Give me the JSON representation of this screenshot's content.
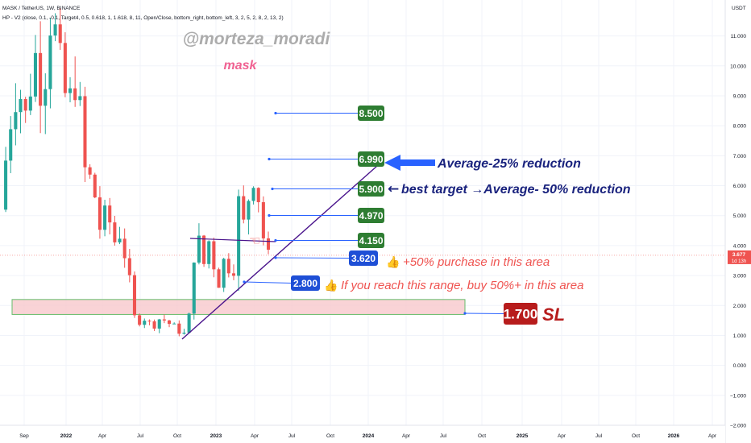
{
  "header": {
    "symbol_line": "MASK / TetherUS, 1W, BINANCE",
    "indicator_line": "HP - V2 (close, 0.1, -0.1, Target4, 0.5, 0.618, 1, 1.618, 8, 11, Open/Close, bottom_right, bottom_left, 3, 2, 5, 2, 8, 2, 13, 2)"
  },
  "watermark": {
    "author": "@morteza_moradi",
    "ticker": "mask"
  },
  "colors": {
    "up": "#26a69a",
    "down": "#ef5350",
    "green_box": "#2e7d32",
    "blue_box": "#1e4fd6",
    "red_box": "#b71c1c",
    "annot_red": "#ef5350",
    "annot_dark": "#1a237e",
    "trendline": "#4a148c",
    "zone_fill": "#f8c8cc",
    "zone_border": "#66bb6a",
    "guide": "#2962ff"
  },
  "chart_data": {
    "type": "candlestick",
    "x_axis_labels": [
      "Sep",
      "2022",
      "Apr",
      "Jul",
      "Oct",
      "2023",
      "Apr",
      "Jul",
      "Oct",
      "2024",
      "Apr",
      "Jul",
      "Oct",
      "2025",
      "Apr",
      "Jul",
      "Oct",
      "2026",
      "Apr"
    ],
    "y_axis": {
      "unit": "USDT",
      "ticks": [
        "11.000",
        "10.000",
        "9.000",
        "8.000",
        "7.000",
        "6.000",
        "5.000",
        "4.000",
        "3.000",
        "2.000",
        "1.000",
        "0.000",
        "−1.000",
        "−2.000"
      ],
      "ylim": [
        -2,
        12.2
      ]
    },
    "current_price": {
      "label": "3.677",
      "countdown": "1d 13h",
      "value": 3.677
    },
    "price_segments": [
      {
        "x": 0.0,
        "y": 5.2
      },
      {
        "x": 0.5,
        "y": 8.0
      },
      {
        "x": 1.0,
        "y": 9.5
      },
      {
        "x": 1.5,
        "y": 8.2
      },
      {
        "x": 2.0,
        "y": 10.5
      },
      {
        "x": 2.5,
        "y": 9.0
      },
      {
        "x": 3.0,
        "y": 12.0
      },
      {
        "x": 3.5,
        "y": 10.0
      },
      {
        "x": 4.0,
        "y": 8.5
      },
      {
        "x": 4.5,
        "y": 9.8
      },
      {
        "x": 5.0,
        "y": 6.5
      },
      {
        "x": 5.5,
        "y": 6.0
      },
      {
        "x": 6.0,
        "y": 4.2
      },
      {
        "x": 6.3,
        "y": 5.4
      },
      {
        "x": 6.7,
        "y": 4.0
      },
      {
        "x": 7.0,
        "y": 4.6
      },
      {
        "x": 7.5,
        "y": 3.4
      },
      {
        "x": 8.0,
        "y": 1.4
      },
      {
        "x": 8.5,
        "y": 1.6
      },
      {
        "x": 9.0,
        "y": 1.3
      },
      {
        "x": 9.5,
        "y": 1.6
      },
      {
        "x": 10.0,
        "y": 1.4
      },
      {
        "x": 10.5,
        "y": 1.2
      },
      {
        "x": 11.0,
        "y": 1.0
      },
      {
        "x": 11.3,
        "y": 2.0
      },
      {
        "x": 11.6,
        "y": 4.8
      },
      {
        "x": 12.0,
        "y": 3.2
      },
      {
        "x": 12.5,
        "y": 4.5
      },
      {
        "x": 12.8,
        "y": 2.4
      },
      {
        "x": 13.3,
        "y": 3.6
      },
      {
        "x": 13.8,
        "y": 3.0
      },
      {
        "x": 14.2,
        "y": 5.9
      },
      {
        "x": 14.5,
        "y": 4.3
      },
      {
        "x": 14.9,
        "y": 6.7
      },
      {
        "x": 15.3,
        "y": 5.7
      },
      {
        "x": 15.6,
        "y": 4.3
      },
      {
        "x": 15.9,
        "y": 3.6
      }
    ],
    "levels": [
      {
        "label": "8.500",
        "value": 8.5,
        "style": "green",
        "start_x": 16.4,
        "note": ""
      },
      {
        "label": "6.990",
        "value": 6.99,
        "style": "green",
        "start_x": 16.0,
        "note": "Average-25% reduction"
      },
      {
        "label": "5.900",
        "value": 5.9,
        "style": "green",
        "start_x": 16.2,
        "note": "best target →Average- 50% reduction"
      },
      {
        "label": "4.970",
        "value": 4.97,
        "style": "green",
        "start_x": 16.0,
        "note": ""
      },
      {
        "label": "4.150",
        "value": 4.15,
        "style": "green",
        "start_x": 16.3,
        "note": ""
      },
      {
        "label": "3.620",
        "value": 3.62,
        "style": "blue",
        "start_x": 16.3,
        "note": "+50% purchase in this area"
      },
      {
        "label": "2.800",
        "value": 2.8,
        "style": "blue",
        "start_x": 14.5,
        "note": "If you reach this range, buy 50%+ in this area"
      },
      {
        "label": "1.700",
        "value": 1.7,
        "style": "red",
        "start_x": 27.6,
        "note": "SL"
      }
    ],
    "support_zone": {
      "x_start": 0.7,
      "x_end": 27.6,
      "y_low": 1.7,
      "y_high": 2.2
    },
    "trendline": {
      "x1": 10.9,
      "y1": 0.85,
      "x2": 22.3,
      "y2": 6.85
    },
    "resistance_line": {
      "x1": 11.3,
      "y1": 4.3,
      "x2": 16.3,
      "y2": 4.15
    }
  }
}
